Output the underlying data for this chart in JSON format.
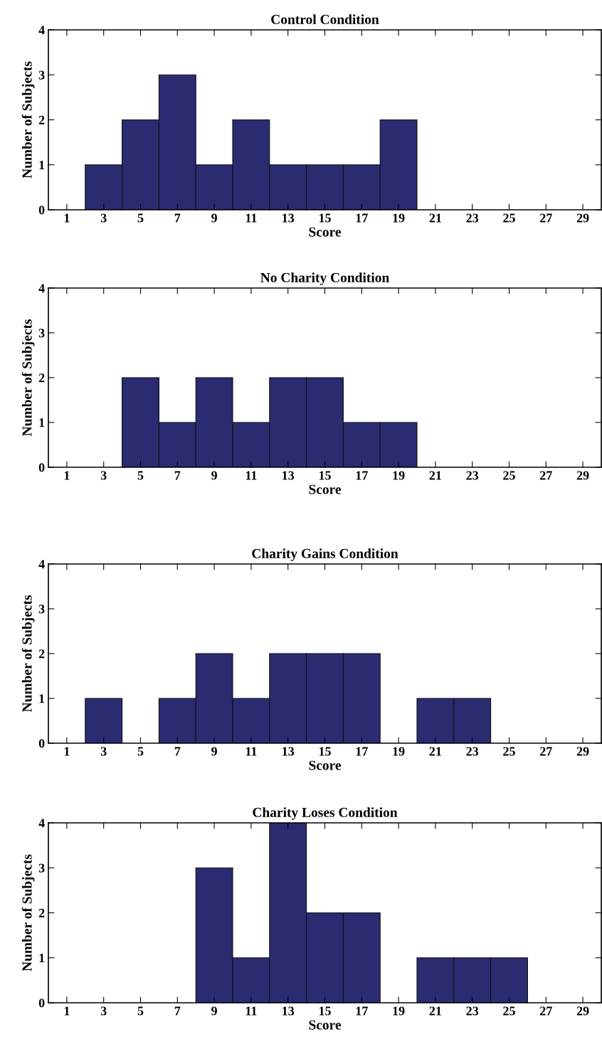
{
  "chart_data": [
    {
      "type": "histogram",
      "title": "Control Condition",
      "xlabel": "Score",
      "ylabel": "Number of Subjects",
      "bins": [
        0,
        2,
        4,
        6,
        8,
        10,
        12,
        14,
        16,
        18,
        20,
        22,
        24,
        26,
        28,
        30
      ],
      "values": [
        0,
        1,
        2,
        3,
        1,
        2,
        1,
        1,
        1,
        2,
        0,
        0,
        0,
        0,
        0
      ],
      "color": "#2b2b72",
      "xlim": [
        0,
        30
      ],
      "xticks": [
        1,
        3,
        5,
        7,
        9,
        11,
        13,
        15,
        17,
        19,
        21,
        23,
        25,
        27,
        29
      ],
      "ylim": [
        0,
        4
      ],
      "yticks": [
        0,
        1,
        2,
        3,
        4
      ],
      "grid": false,
      "legend": false
    },
    {
      "type": "histogram",
      "title": "No Charity Condition",
      "xlabel": "Score",
      "ylabel": "Number of Subjects",
      "bins": [
        0,
        2,
        4,
        6,
        8,
        10,
        12,
        14,
        16,
        18,
        20,
        22,
        24,
        26,
        28,
        30
      ],
      "values": [
        0,
        0,
        2,
        1,
        2,
        1,
        2,
        2,
        1,
        1,
        0,
        0,
        0,
        0,
        0
      ],
      "color": "#2b2b72",
      "xlim": [
        0,
        30
      ],
      "xticks": [
        1,
        3,
        5,
        7,
        9,
        11,
        13,
        15,
        17,
        19,
        21,
        23,
        25,
        27,
        29
      ],
      "ylim": [
        0,
        4
      ],
      "yticks": [
        0,
        1,
        2,
        3,
        4
      ],
      "grid": false,
      "legend": false
    },
    {
      "type": "histogram",
      "title": "Charity Gains Condition",
      "xlabel": "Score",
      "ylabel": "Number of Subjects",
      "bins": [
        0,
        2,
        4,
        6,
        8,
        10,
        12,
        14,
        16,
        18,
        20,
        22,
        24,
        26,
        28,
        30
      ],
      "values": [
        0,
        1,
        0,
        1,
        2,
        1,
        2,
        2,
        2,
        0,
        1,
        1,
        0,
        0,
        0
      ],
      "color": "#2b2b72",
      "xlim": [
        0,
        30
      ],
      "xticks": [
        1,
        3,
        5,
        7,
        9,
        11,
        13,
        15,
        17,
        19,
        21,
        23,
        25,
        27,
        29
      ],
      "ylim": [
        0,
        4
      ],
      "yticks": [
        0,
        1,
        2,
        3,
        4
      ],
      "grid": false,
      "legend": false
    },
    {
      "type": "histogram",
      "title": "Charity Loses Condition",
      "xlabel": "Score",
      "ylabel": "Number of Subjects",
      "bins": [
        0,
        2,
        4,
        6,
        8,
        10,
        12,
        14,
        16,
        18,
        20,
        22,
        24,
        26,
        28,
        30
      ],
      "values": [
        0,
        0,
        0,
        0,
        3,
        1,
        4,
        2,
        2,
        0,
        1,
        1,
        1,
        0,
        0
      ],
      "color": "#2b2b72",
      "xlim": [
        0,
        30
      ],
      "xticks": [
        1,
        3,
        5,
        7,
        9,
        11,
        13,
        15,
        17,
        19,
        21,
        23,
        25,
        27,
        29
      ],
      "ylim": [
        0,
        4
      ],
      "yticks": [
        0,
        1,
        2,
        3,
        4
      ],
      "grid": false,
      "legend": false
    }
  ]
}
